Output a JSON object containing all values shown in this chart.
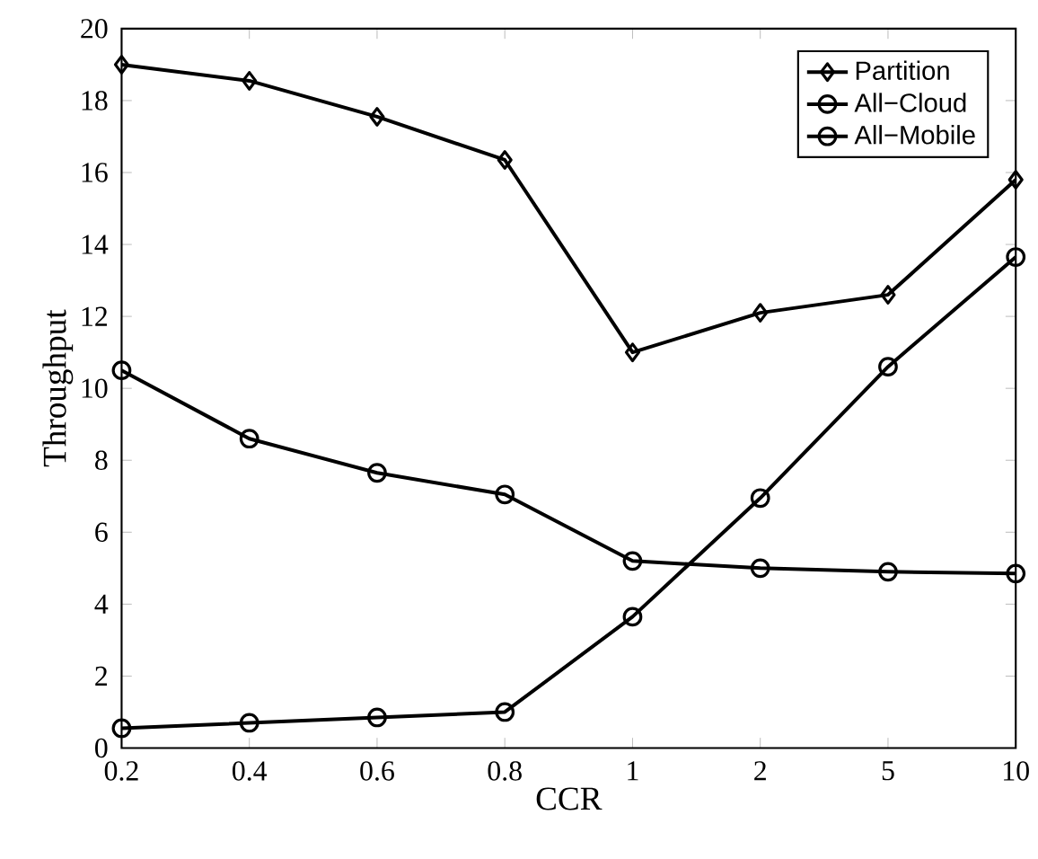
{
  "chart_data": {
    "type": "line",
    "xlabel": "CCR",
    "ylabel": "Throughput",
    "categories": [
      "0.2",
      "0.4",
      "0.6",
      "0.8",
      "1",
      "2",
      "5",
      "10"
    ],
    "ylim": [
      0,
      20
    ],
    "yticks": [
      0,
      2,
      4,
      6,
      8,
      10,
      12,
      14,
      16,
      18,
      20
    ],
    "legend": "top right",
    "grid": false,
    "line_style": "solid",
    "series": [
      {
        "name": "Partition",
        "color": "#000000",
        "marker": "diamond",
        "values": [
          19.0,
          18.55,
          17.55,
          16.35,
          11.0,
          12.1,
          12.6,
          15.8
        ]
      },
      {
        "name": "All−Cloud",
        "color": "#000000",
        "marker": "circle",
        "values": [
          10.5,
          8.6,
          7.65,
          7.05,
          5.2,
          5.0,
          4.9,
          4.85
        ]
      },
      {
        "name": "All−Mobile",
        "color": "#000000",
        "marker": "circle",
        "values": [
          0.55,
          0.7,
          0.85,
          1.0,
          3.65,
          6.95,
          10.6,
          13.65
        ]
      }
    ]
  }
}
